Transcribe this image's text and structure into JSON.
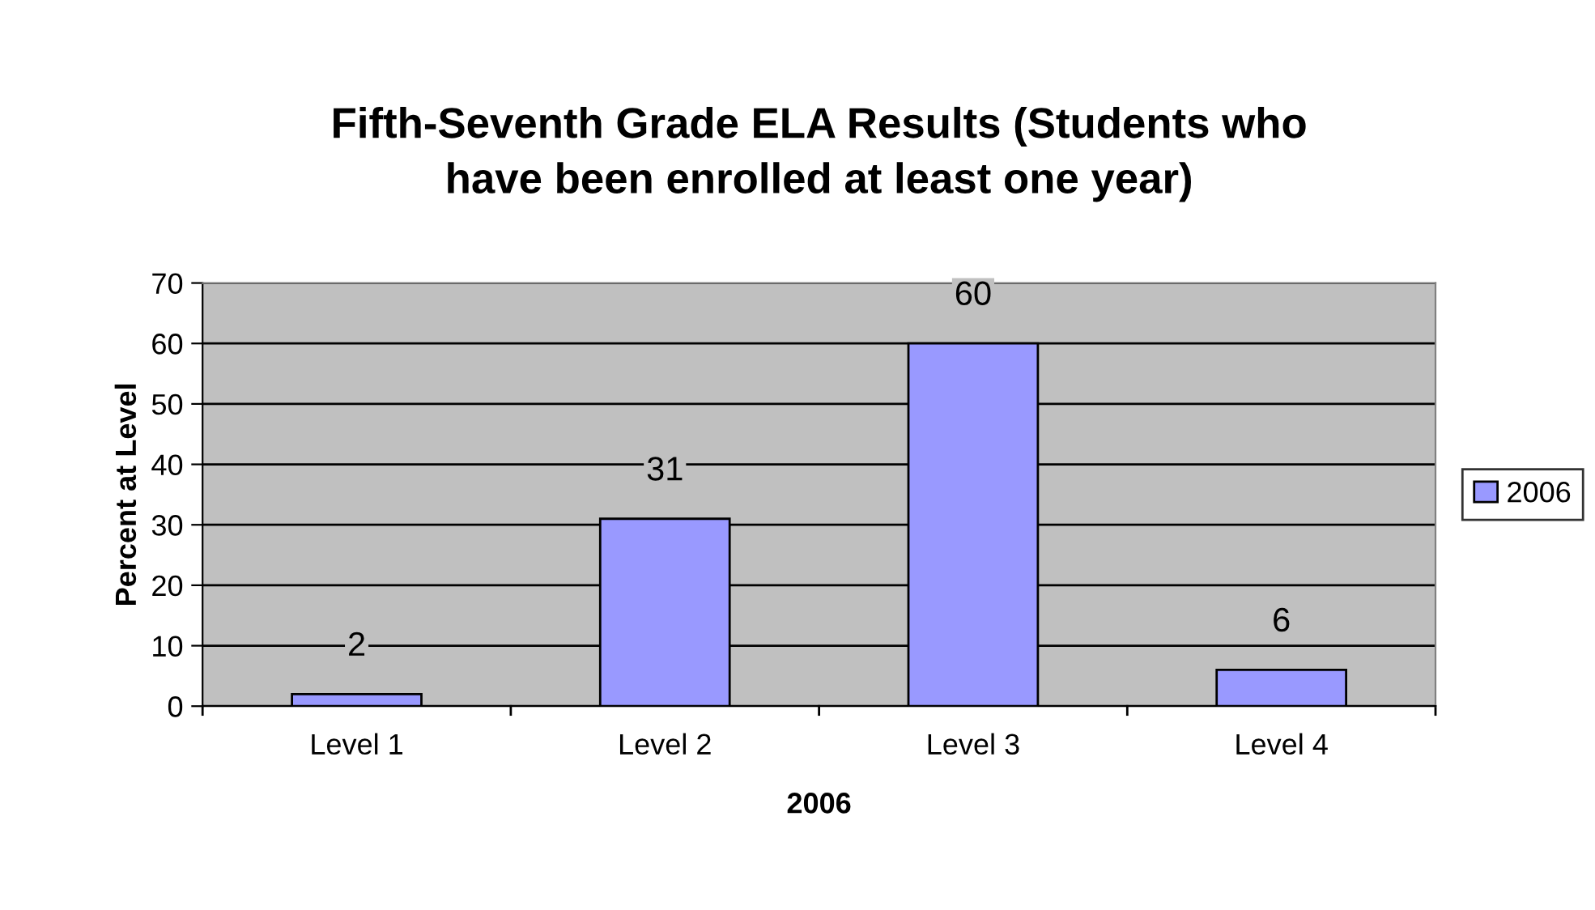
{
  "chart_data": {
    "type": "bar",
    "title": "Fifth-Seventh Grade ELA Results (Students who\nhave been enrolled at least one year)",
    "xlabel": "2006",
    "ylabel": "Percent at Level",
    "categories": [
      "Level 1",
      "Level 2",
      "Level 3",
      "Level 4"
    ],
    "series": [
      {
        "name": "2006",
        "color": "#9999ff",
        "values": [
          2,
          31,
          60,
          6
        ]
      }
    ],
    "ylim": [
      0,
      70
    ],
    "yticks": [
      0,
      10,
      20,
      30,
      40,
      50,
      60,
      70
    ],
    "grid": "y",
    "legend": "right",
    "data_labels": true
  }
}
